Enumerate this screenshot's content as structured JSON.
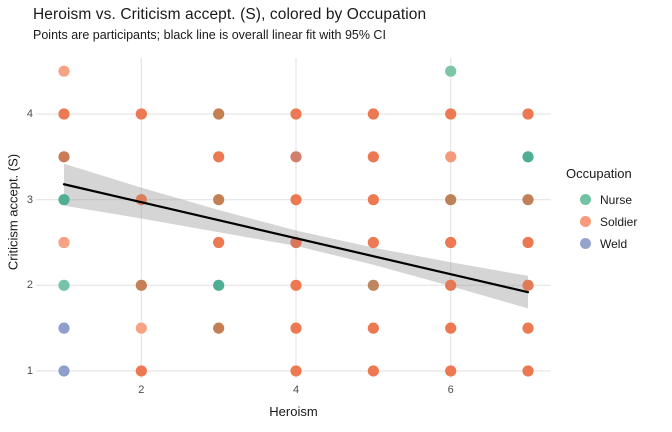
{
  "chart_data": {
    "type": "scatter",
    "title": "Heroism vs. Criticism accept. (S), colored by Occupation",
    "subtitle": "Points are participants; black line is overall linear fit with 95% CI",
    "xlabel": "Heroism",
    "ylabel": "Criticism accept. (S)",
    "x_ticks": [
      2,
      4,
      6
    ],
    "y_ticks": [
      1,
      2,
      3,
      4
    ],
    "xlim": [
      0.638,
      7.297
    ],
    "ylim": [
      0.918,
      4.654
    ],
    "grid": "major-only",
    "grid_color": "#e4e4e4",
    "background": "#ffffff",
    "legend": {
      "title": "Occupation",
      "position": "right",
      "entries": [
        {
          "label": "Nurse",
          "color": "#72c3a4"
        },
        {
          "label": "Soldier",
          "color": "#f89b7c"
        },
        {
          "label": "Weld",
          "color": "#96a3ce"
        }
      ]
    },
    "fit_line": {
      "description": "overall linear fit",
      "color": "#000000",
      "width": 2.2,
      "x": [
        1,
        7
      ],
      "y": [
        3.18,
        1.92
      ]
    },
    "ci_ribbon": {
      "level": "95% CI",
      "fill": "#9b9b9b",
      "opacity": 0.42,
      "x": [
        1.0,
        2.0,
        3.0,
        4.0,
        5.0,
        6.0,
        7.0
      ],
      "upper": [
        3.42,
        3.14,
        2.88,
        2.64,
        2.44,
        2.27,
        2.11
      ],
      "lower": [
        2.93,
        2.78,
        2.62,
        2.46,
        2.24,
        1.99,
        1.73
      ]
    },
    "point_radius": 5.6,
    "points": [
      {
        "x": 1,
        "y": 4.5,
        "group": "soldier",
        "color": "#f5a285"
      },
      {
        "x": 1,
        "y": 4.0,
        "group": "soldier",
        "color": "#ed7952"
      },
      {
        "x": 1,
        "y": 3.5,
        "group": "mixed",
        "color": "#c97c55"
      },
      {
        "x": 1,
        "y": 3.0,
        "group": "nurse",
        "color": "#4fae93"
      },
      {
        "x": 1,
        "y": 2.5,
        "group": "soldier",
        "color": "#f5a285"
      },
      {
        "x": 1,
        "y": 2.0,
        "group": "nurse",
        "color": "#77c3a8"
      },
      {
        "x": 1,
        "y": 1.5,
        "group": "weld",
        "color": "#8e9fcb"
      },
      {
        "x": 1,
        "y": 1.0,
        "group": "weld",
        "color": "#8e9fcb"
      },
      {
        "x": 2,
        "y": 4.0,
        "group": "soldier",
        "color": "#ed7952"
      },
      {
        "x": 2,
        "y": 3.0,
        "group": "soldier",
        "color": "#d8805e"
      },
      {
        "x": 2,
        "y": 2.0,
        "group": "mixed",
        "color": "#c58058"
      },
      {
        "x": 2,
        "y": 1.5,
        "group": "soldier",
        "color": "#f5a285"
      },
      {
        "x": 2,
        "y": 1.0,
        "group": "soldier",
        "color": "#ed7952"
      },
      {
        "x": 3,
        "y": 4.0,
        "group": "mixed",
        "color": "#c57f55"
      },
      {
        "x": 3,
        "y": 3.5,
        "group": "soldier",
        "color": "#ed7952"
      },
      {
        "x": 3,
        "y": 3.0,
        "group": "mixed",
        "color": "#c57f55"
      },
      {
        "x": 3,
        "y": 2.5,
        "group": "soldier",
        "color": "#ed7952"
      },
      {
        "x": 3,
        "y": 2.0,
        "group": "nurse",
        "color": "#4fae93"
      },
      {
        "x": 3,
        "y": 1.5,
        "group": "mixed",
        "color": "#c57f55"
      },
      {
        "x": 4,
        "y": 4.0,
        "group": "soldier",
        "color": "#ed7952"
      },
      {
        "x": 4,
        "y": 3.5,
        "group": "mixed",
        "color": "#d47e6c"
      },
      {
        "x": 4,
        "y": 3.0,
        "group": "soldier",
        "color": "#ed7952"
      },
      {
        "x": 4,
        "y": 2.5,
        "group": "soldier",
        "color": "#d8775a"
      },
      {
        "x": 4,
        "y": 2.0,
        "group": "soldier",
        "color": "#ed7952"
      },
      {
        "x": 4,
        "y": 1.5,
        "group": "soldier",
        "color": "#ed7952"
      },
      {
        "x": 4,
        "y": 1.0,
        "group": "soldier",
        "color": "#ed7952"
      },
      {
        "x": 5,
        "y": 4.0,
        "group": "soldier",
        "color": "#ed7952"
      },
      {
        "x": 5,
        "y": 3.5,
        "group": "soldier",
        "color": "#ed7952"
      },
      {
        "x": 5,
        "y": 3.0,
        "group": "soldier",
        "color": "#ed7952"
      },
      {
        "x": 5,
        "y": 2.5,
        "group": "soldier",
        "color": "#ed7952"
      },
      {
        "x": 5,
        "y": 2.0,
        "group": "mixed",
        "color": "#be8660"
      },
      {
        "x": 5,
        "y": 1.5,
        "group": "soldier",
        "color": "#ed7952"
      },
      {
        "x": 5,
        "y": 1.0,
        "group": "soldier",
        "color": "#ed7952"
      },
      {
        "x": 6,
        "y": 4.5,
        "group": "nurse",
        "color": "#7cc6a5"
      },
      {
        "x": 6,
        "y": 4.0,
        "group": "soldier",
        "color": "#ed7952"
      },
      {
        "x": 6,
        "y": 3.5,
        "group": "soldier",
        "color": "#f49a7b"
      },
      {
        "x": 6,
        "y": 3.0,
        "group": "mixed",
        "color": "#bd8158"
      },
      {
        "x": 6,
        "y": 2.5,
        "group": "soldier",
        "color": "#ed7952"
      },
      {
        "x": 6,
        "y": 2.0,
        "group": "soldier",
        "color": "#e47a55"
      },
      {
        "x": 6,
        "y": 1.5,
        "group": "soldier",
        "color": "#ed7952"
      },
      {
        "x": 6,
        "y": 1.0,
        "group": "soldier",
        "color": "#ed7952"
      },
      {
        "x": 7,
        "y": 4.0,
        "group": "soldier",
        "color": "#ed7952"
      },
      {
        "x": 7,
        "y": 3.5,
        "group": "nurse",
        "color": "#4fae93"
      },
      {
        "x": 7,
        "y": 3.0,
        "group": "mixed",
        "color": "#c08058"
      },
      {
        "x": 7,
        "y": 2.5,
        "group": "soldier",
        "color": "#ed7952"
      },
      {
        "x": 7,
        "y": 2.0,
        "group": "soldier",
        "color": "#e07a57"
      },
      {
        "x": 7,
        "y": 1.5,
        "group": "soldier",
        "color": "#ed7952"
      },
      {
        "x": 7,
        "y": 1.0,
        "group": "soldier",
        "color": "#ed7952"
      }
    ]
  }
}
